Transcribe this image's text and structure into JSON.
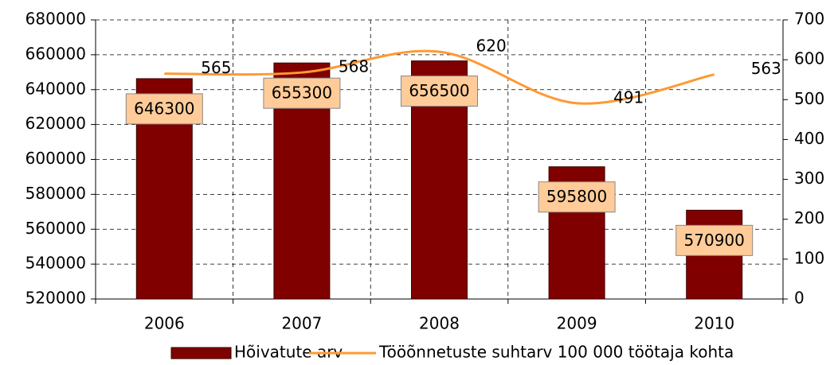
{
  "chart_data": {
    "type": "bar_line",
    "categories": [
      "2006",
      "2007",
      "2008",
      "2009",
      "2010"
    ],
    "series": [
      {
        "name": "Hõivatute arv",
        "color": "#800000",
        "values": [
          646300,
          655300,
          656500,
          595800,
          570900
        ]
      },
      {
        "name": "Tööõnnetuste suhtarv 100 000 töötaja kohta",
        "color": "#FF9933",
        "axis": "y2",
        "values": [
          565,
          568,
          620,
          491,
          563
        ]
      }
    ],
    "ylim": [
      520000,
      680000
    ],
    "yticks": [
      520000,
      540000,
      560000,
      580000,
      600000,
      620000,
      640000,
      660000,
      680000
    ],
    "y2lim": [
      0,
      700
    ],
    "y2ticks": [
      0,
      100,
      200,
      300,
      400,
      500,
      600,
      700
    ],
    "grid": true,
    "legend": "bottom"
  }
}
